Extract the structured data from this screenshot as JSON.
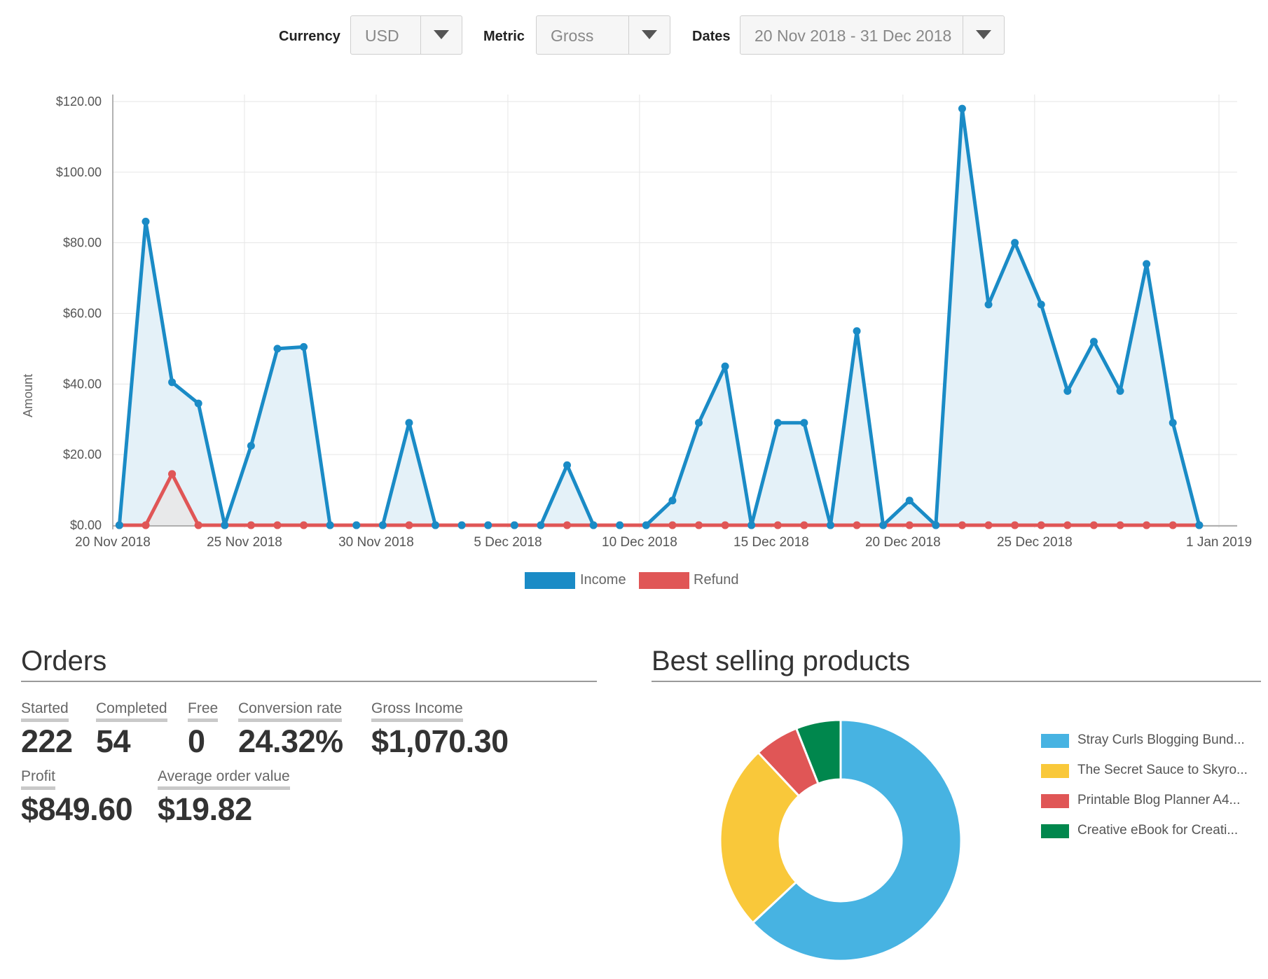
{
  "filters": {
    "currency": {
      "label": "Currency",
      "value": "USD"
    },
    "metric": {
      "label": "Metric",
      "value": "Gross"
    },
    "dates": {
      "label": "Dates",
      "value": "20 Nov 2018 - 31 Dec 2018"
    }
  },
  "chart_data": {
    "type": "line",
    "title": "",
    "xlabel": "",
    "ylabel": "Amount",
    "ylim": [
      0,
      120
    ],
    "yticks": [
      "$0.00",
      "$20.00",
      "$40.00",
      "$60.00",
      "$80.00",
      "$100.00",
      "$120.00"
    ],
    "x_start": "20 Nov 2018",
    "x_end": "1 Jan 2019",
    "xticks": [
      "20 Nov 2018",
      "25 Nov 2018",
      "30 Nov 2018",
      "5 Dec 2018",
      "10 Dec 2018",
      "15 Dec 2018",
      "20 Dec 2018",
      "25 Dec 2018",
      "1 Jan 2019"
    ],
    "grid": true,
    "legend_position": "bottom-center",
    "series": [
      {
        "name": "Income",
        "color": "#1a8bc6",
        "fill": "#e4f1f8",
        "values": [
          0,
          86,
          40.5,
          34.5,
          0,
          22.5,
          50,
          50.5,
          0,
          0,
          0,
          29,
          0,
          0,
          0,
          0,
          0,
          17,
          0,
          0,
          0,
          7,
          29,
          45,
          0,
          29,
          29,
          0,
          55,
          0,
          7,
          0,
          118,
          62.5,
          80,
          62.5,
          38,
          52,
          38,
          74,
          29,
          0
        ]
      },
      {
        "name": "Refund",
        "color": "#e05656",
        "fill": "#e8e8e8",
        "values": [
          0,
          0,
          14.5,
          0,
          0,
          0,
          0,
          0,
          0,
          0,
          0,
          0,
          0,
          0,
          0,
          0,
          0,
          0,
          0,
          0,
          0,
          0,
          0,
          0,
          0,
          0,
          0,
          0,
          0,
          0,
          0,
          0,
          0,
          0,
          0,
          0,
          0,
          0,
          0,
          0,
          0,
          0
        ]
      }
    ]
  },
  "orders": {
    "title": "Orders",
    "started": {
      "label": "Started",
      "value": "222"
    },
    "completed": {
      "label": "Completed",
      "value": "54"
    },
    "free": {
      "label": "Free",
      "value": "0"
    },
    "conversion": {
      "label": "Conversion rate",
      "value": "24.32%"
    },
    "gross": {
      "label": "Gross Income",
      "value": "$1,070.30"
    },
    "profit": {
      "label": "Profit",
      "value": "$849.60"
    },
    "aov": {
      "label": "Average order value",
      "value": "$19.82"
    }
  },
  "best_selling": {
    "title": "Best selling products",
    "chart_data": {
      "type": "pie",
      "labels": [
        "Stray Curls Blogging Bund...",
        "The Secret Sauce to Skyro...",
        "Printable Blog Planner A4...",
        "Creative eBook for Creati..."
      ],
      "values": [
        63,
        25,
        6,
        6
      ],
      "colors": [
        "#47b3e2",
        "#f9c83a",
        "#e05656",
        "#00874d"
      ]
    }
  }
}
